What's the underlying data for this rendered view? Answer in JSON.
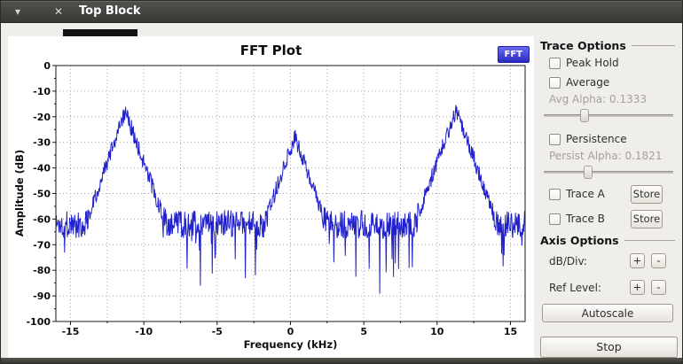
{
  "window": {
    "title": "Top Block"
  },
  "titlebar": {
    "menu_icon": "▾",
    "close_icon": "✕"
  },
  "plot": {
    "tab_label": "FFT"
  },
  "chart_data": {
    "type": "line",
    "title": "FFT Plot",
    "xlabel": "Frequency (kHz)",
    "ylabel": "Amplitude (dB)",
    "xlim": [
      -16,
      16
    ],
    "ylim": [
      -100,
      0
    ],
    "x_ticks": [
      -15,
      -10,
      -5,
      0,
      5,
      10,
      15
    ],
    "x_minor_step": 2.5,
    "y_ticks": [
      0,
      -10,
      -20,
      -30,
      -40,
      -50,
      -60,
      -70,
      -80,
      -90,
      -100
    ],
    "y_minor_step": 5,
    "grid": true,
    "legend_position": "none",
    "line_color": "#2222cc",
    "noise_floor_db": -62,
    "noise_amplitude_db": 5.5,
    "num_points": 1024,
    "seed": 1337,
    "peaks": [
      {
        "freq_khz": -11.25,
        "peak_db": -18,
        "skirt_db_per_khz": 16
      },
      {
        "freq_khz": 0.3,
        "peak_db": -28,
        "skirt_db_per_khz": 16
      },
      {
        "freq_khz": 11.3,
        "peak_db": -17,
        "skirt_db_per_khz": 16
      }
    ]
  },
  "trace_options": {
    "group_title": "Trace Options",
    "peak_hold": "Peak Hold",
    "average": "Average",
    "avg_alpha_label": "Avg Alpha: 0.1333",
    "avg_slider_pos": 0.3,
    "persistence": "Persistence",
    "persist_alpha_label": "Persist Alpha: 0.1821",
    "persist_slider_pos": 0.33,
    "trace_a": "Trace A",
    "trace_b": "Trace B",
    "store_label": "Store"
  },
  "axis_options": {
    "group_title": "Axis Options",
    "db_div_label": "dB/Div:",
    "ref_level_label": "Ref Level:",
    "plus_label": "+",
    "minus_label": "-",
    "autoscale_label": "Autoscale"
  },
  "stop_button": {
    "label": "Stop"
  }
}
